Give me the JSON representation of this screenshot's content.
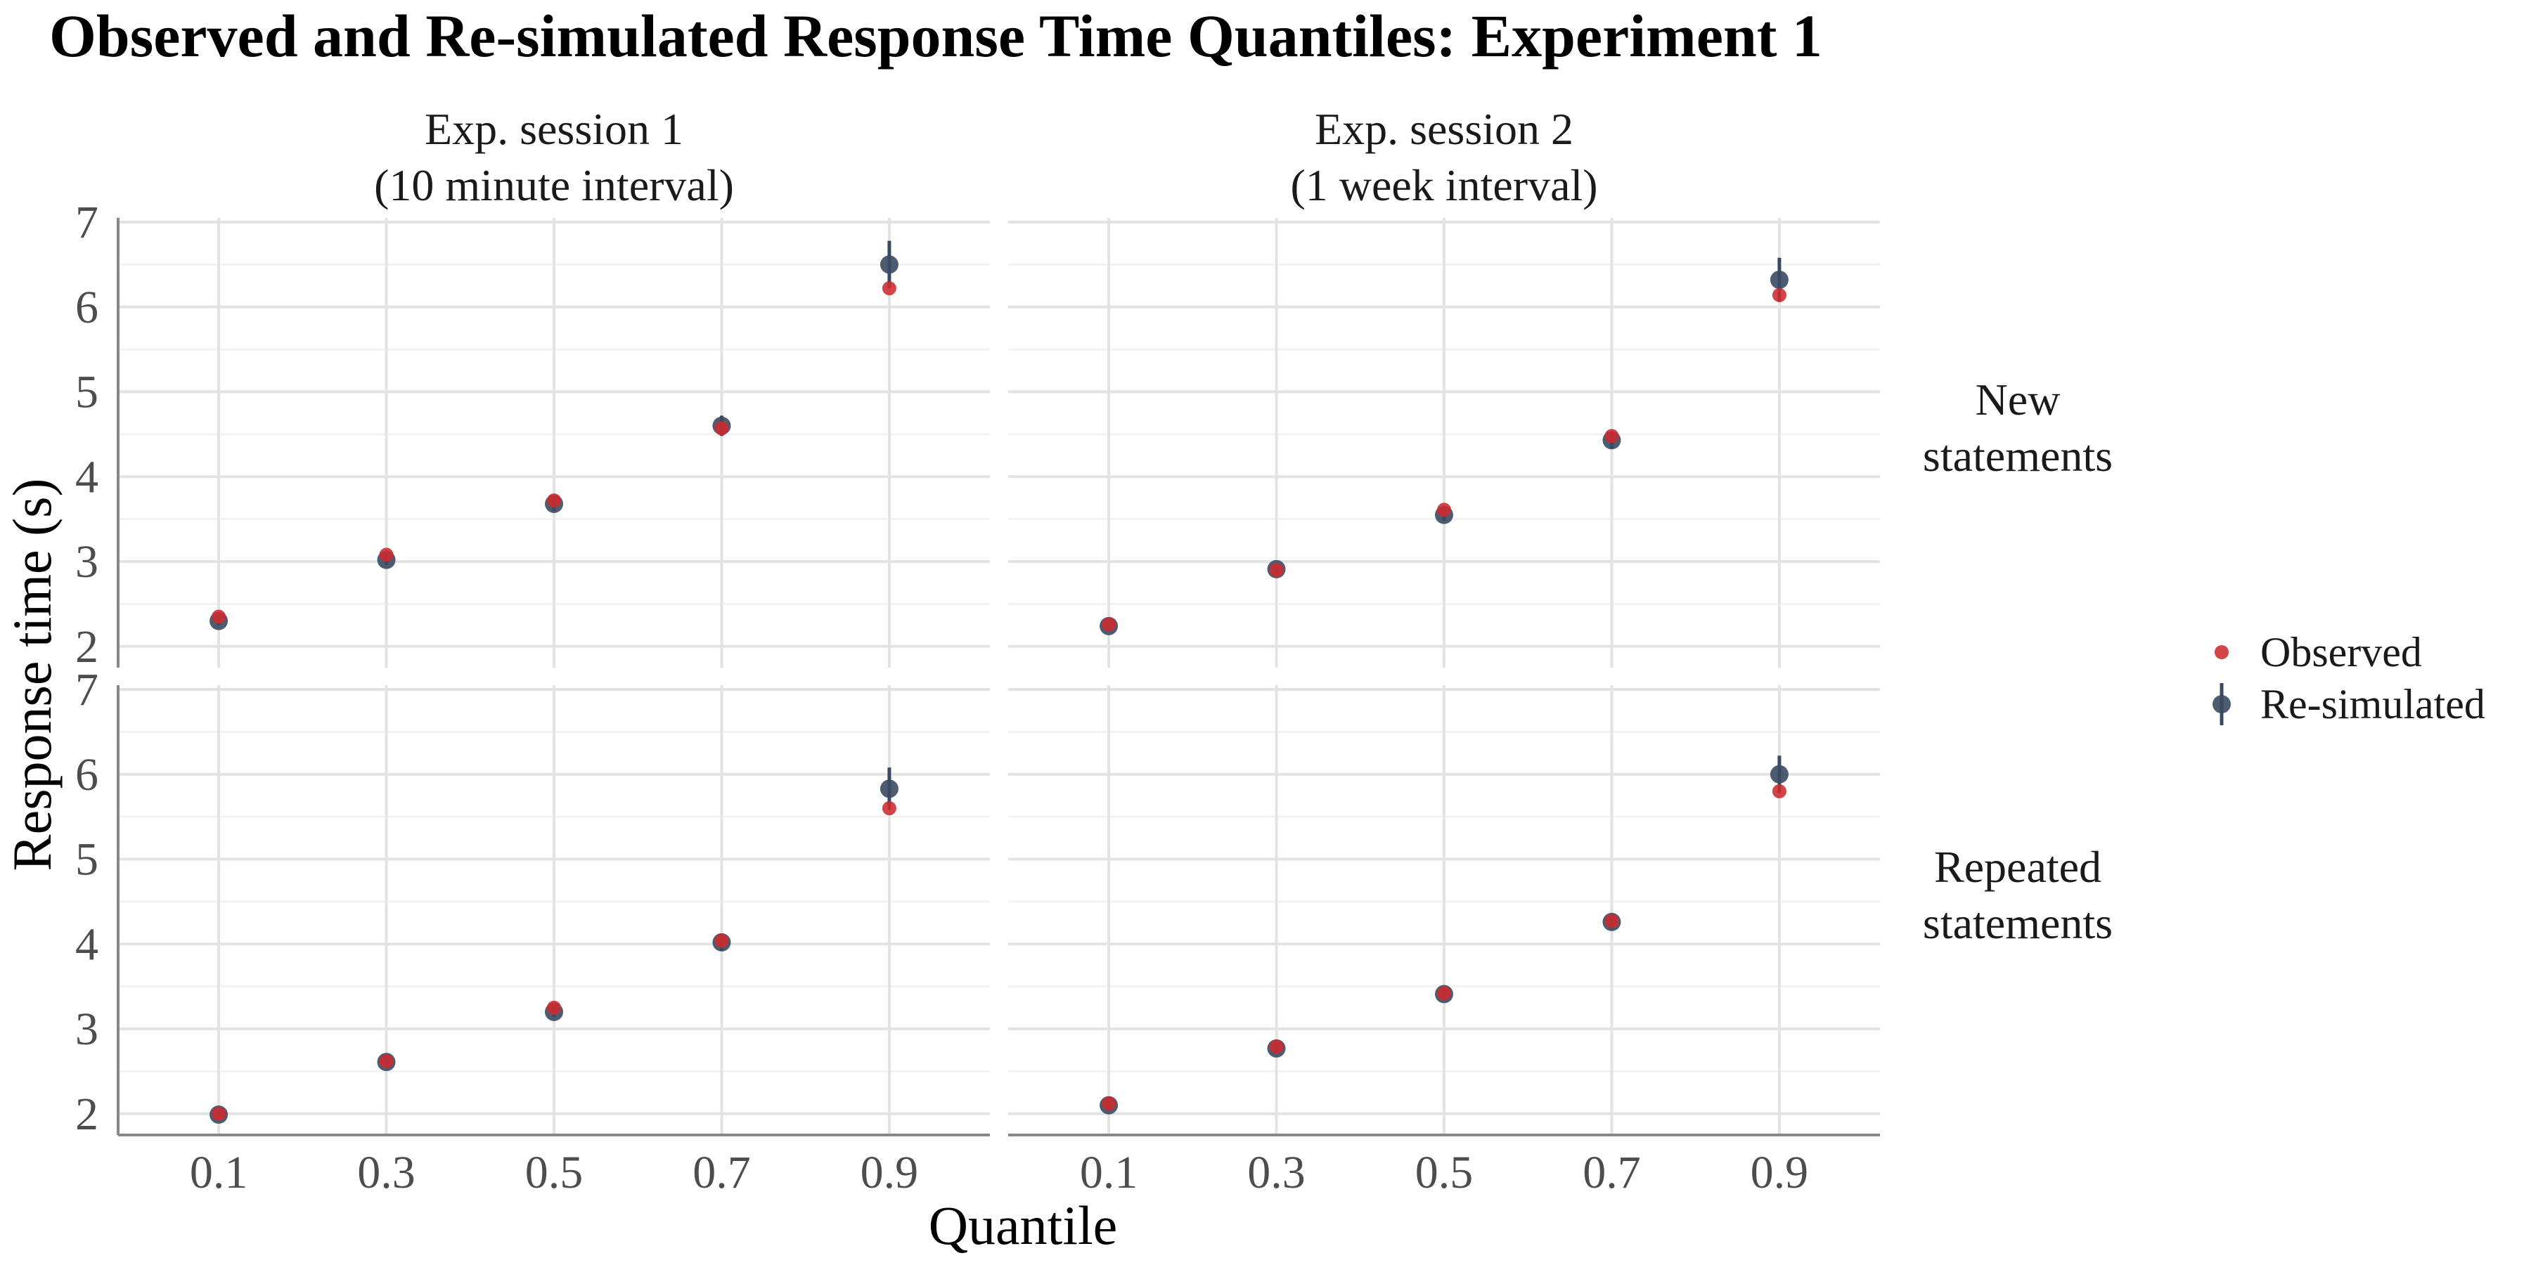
{
  "chart_data": {
    "type": "scatter",
    "title": "Observed and Re-simulated Response Time Quantiles: Experiment 1",
    "xlabel": "Quantile",
    "ylabel": "Response time (s)",
    "x_ticks": [
      "0.1",
      "0.3",
      "0.5",
      "0.7",
      "0.9"
    ],
    "y_ticks": [
      "2",
      "3",
      "4",
      "5",
      "6",
      "7"
    ],
    "xlim": [
      -0.02,
      1.02
    ],
    "ylim": [
      1.75,
      7.05
    ],
    "grid": true,
    "legend_position": "right",
    "columns": [
      "Exp. session 1\n(10 minute interval)",
      "Exp. session 2\n(1 week interval)"
    ],
    "rows": [
      "New\nstatements",
      "Repeated\nstatements"
    ],
    "legend": [
      {
        "name": "Observed",
        "color": "#cc2a2e"
      },
      {
        "name": "Re-simulated",
        "color": "#3b4a63"
      }
    ],
    "panels": [
      {
        "column": 0,
        "row": 0,
        "x": [
          0.1,
          0.3,
          0.5,
          0.7,
          0.9
        ],
        "observed": [
          2.35,
          3.08,
          3.72,
          4.57,
          6.22
        ],
        "resimulated": [
          2.3,
          3.02,
          3.68,
          4.6,
          6.5
        ],
        "resimulated_error": [
          0.05,
          0.06,
          0.08,
          0.12,
          0.28
        ]
      },
      {
        "column": 1,
        "row": 0,
        "x": [
          0.1,
          0.3,
          0.5,
          0.7,
          0.9
        ],
        "observed": [
          2.26,
          2.9,
          3.61,
          4.48,
          6.14
        ],
        "resimulated": [
          2.24,
          2.91,
          3.55,
          4.43,
          6.32
        ],
        "resimulated_error": [
          0.05,
          0.05,
          0.07,
          0.1,
          0.26
        ]
      },
      {
        "column": 0,
        "row": 1,
        "x": [
          0.1,
          0.3,
          0.5,
          0.7,
          0.9
        ],
        "observed": [
          2.0,
          2.62,
          3.25,
          4.04,
          5.6
        ],
        "resimulated": [
          1.99,
          2.61,
          3.2,
          4.02,
          5.83
        ],
        "resimulated_error": [
          0.04,
          0.05,
          0.06,
          0.1,
          0.25
        ]
      },
      {
        "column": 1,
        "row": 1,
        "x": [
          0.1,
          0.3,
          0.5,
          0.7,
          0.9
        ],
        "observed": [
          2.12,
          2.79,
          3.42,
          4.27,
          5.8
        ],
        "resimulated": [
          2.1,
          2.77,
          3.41,
          4.26,
          6.0
        ],
        "resimulated_error": [
          0.04,
          0.05,
          0.06,
          0.08,
          0.22
        ]
      }
    ]
  }
}
